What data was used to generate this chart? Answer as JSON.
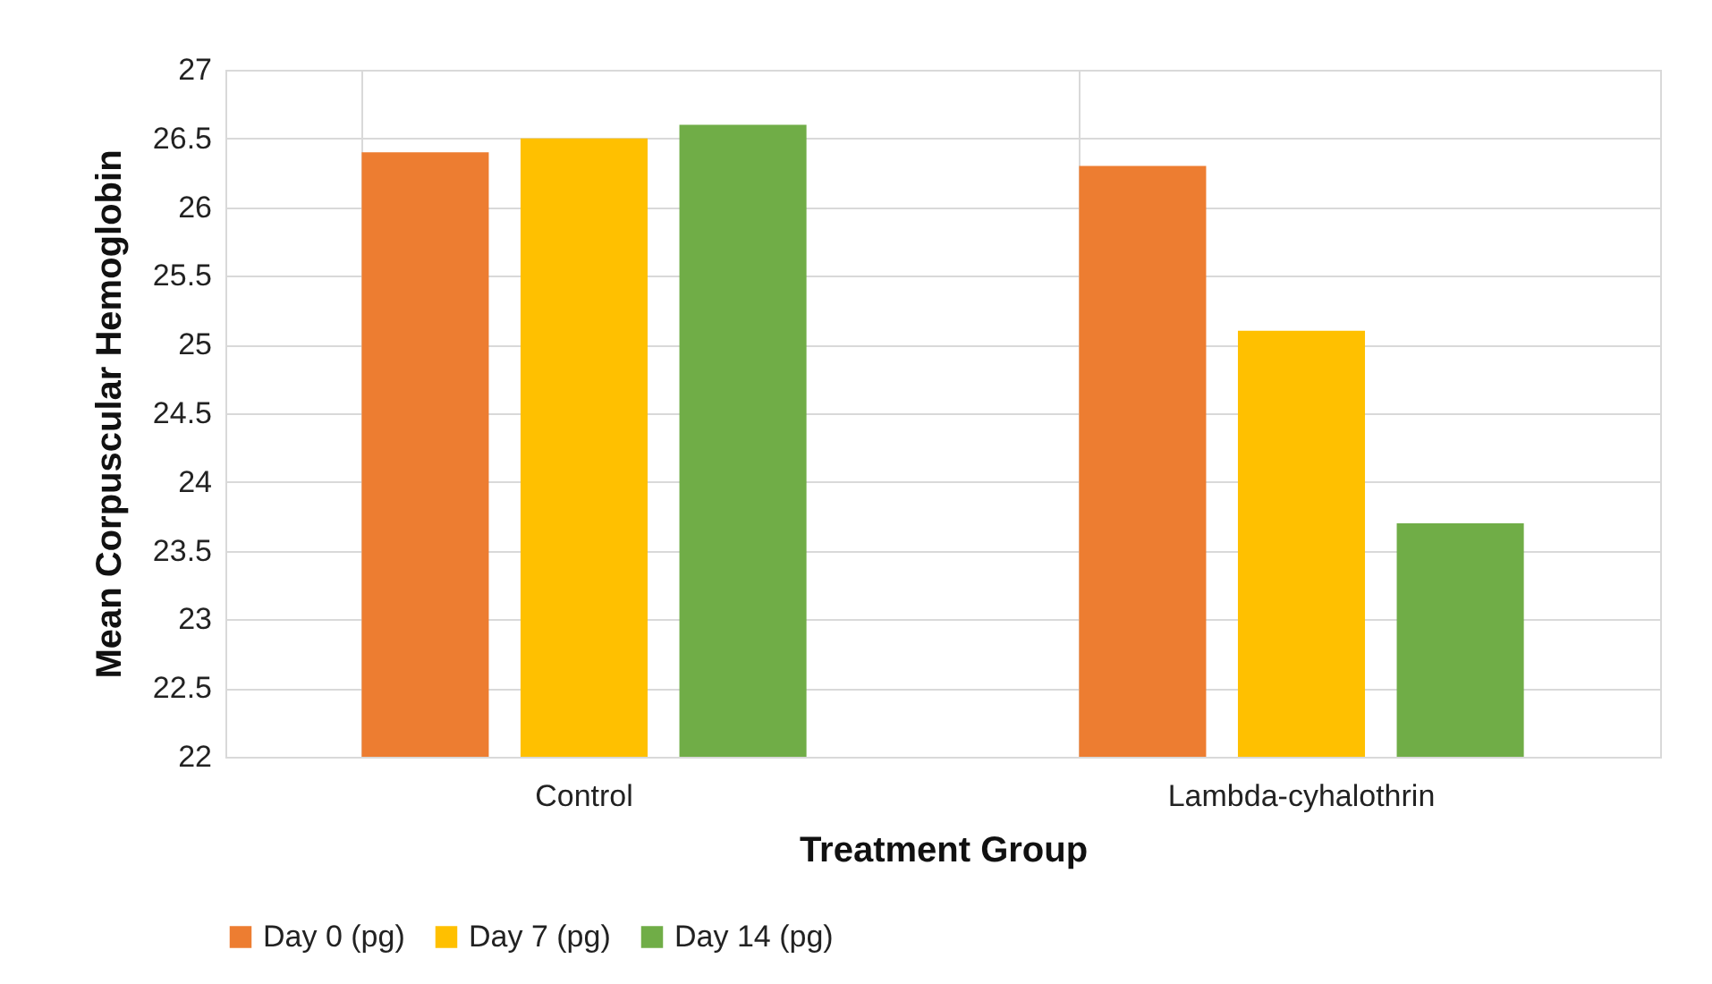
{
  "chart_data": {
    "type": "bar",
    "xlabel": "Treatment Group",
    "ylabel": "Mean Corpuscular Hemoglobin",
    "categories": [
      "Control",
      "Lambda-cyhalothrin"
    ],
    "series": [
      {
        "name": "Day 0 (pg)",
        "color": "#ed7d31",
        "values": [
          26.4,
          26.3
        ]
      },
      {
        "name": "Day 7 (pg)",
        "color": "#ffc000",
        "values": [
          26.5,
          25.1
        ]
      },
      {
        "name": "Day 14 (pg)",
        "color": "#70ad47",
        "values": [
          26.6,
          23.7
        ]
      }
    ],
    "ylim": [
      22,
      27
    ],
    "yticks": [
      22,
      22.5,
      23,
      23.5,
      24,
      24.5,
      25,
      25.5,
      26,
      26.5,
      27
    ],
    "grid": true,
    "legend": "bottom"
  }
}
